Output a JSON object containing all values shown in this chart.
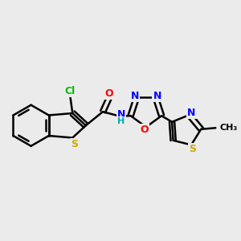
{
  "bg_color": "#ebebeb",
  "bond_color": "#000000",
  "bond_width": 1.8,
  "dbo": 0.013,
  "atom_colors": {
    "Cl": "#00bb00",
    "S": "#ccaa00",
    "O": "#ff0000",
    "N": "#0000ff",
    "H": "#00aaaa",
    "C": "#000000"
  }
}
